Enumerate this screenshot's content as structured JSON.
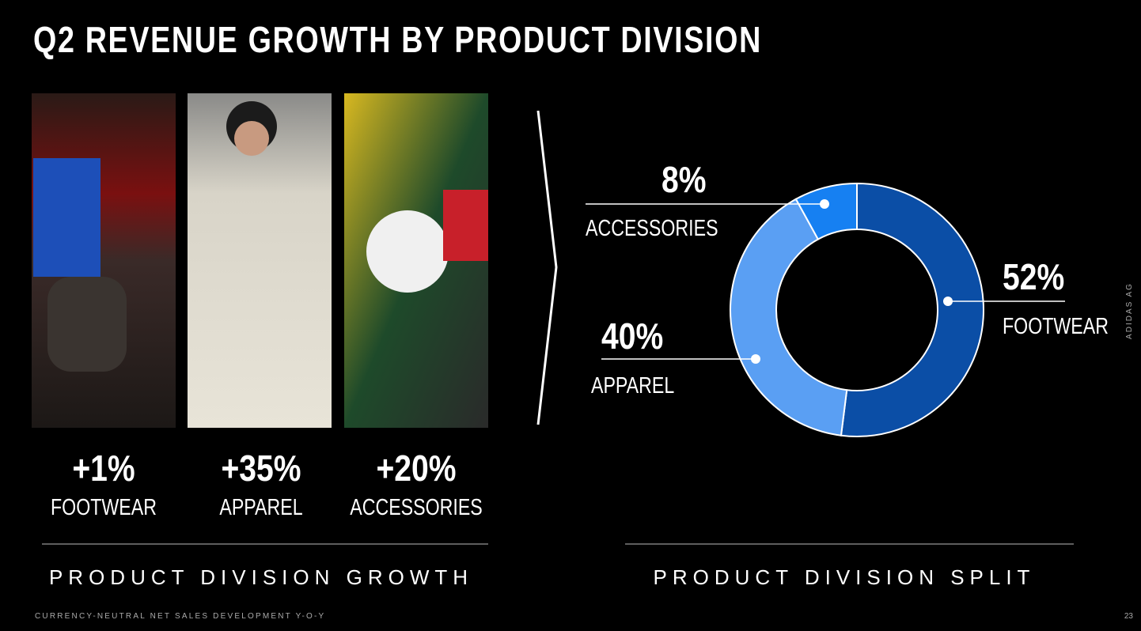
{
  "title": "Q2 REVENUE GROWTH BY PRODUCT DIVISION",
  "growth": {
    "items": [
      {
        "value": "+1%",
        "label": "FOOTWEAR"
      },
      {
        "value": "+35%",
        "label": "APPAREL"
      },
      {
        "value": "+20%",
        "label": "ACCESSORIES"
      }
    ],
    "caption": "PRODUCT DIVISION GROWTH"
  },
  "chart_data": {
    "type": "pie",
    "donut": true,
    "categories": [
      "FOOTWEAR",
      "APPAREL",
      "ACCESSORIES"
    ],
    "values": [
      52,
      40,
      8
    ],
    "value_labels": [
      "52%",
      "40%",
      "8%"
    ],
    "colors": [
      "#0b4ea6",
      "#5a9ff3",
      "#1680f2"
    ],
    "caption": "PRODUCT DIVISION SPLIT"
  },
  "footer": {
    "note": "CURRENCY-NEUTRAL NET SALES DEVELOPMENT Y-O-Y",
    "company": "ADIDAS AG",
    "page": "23"
  }
}
